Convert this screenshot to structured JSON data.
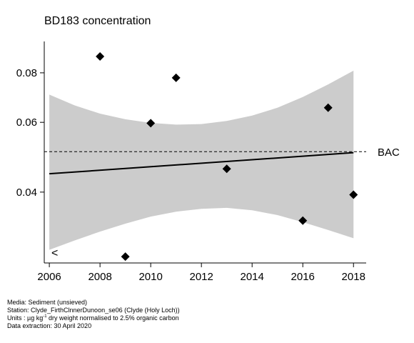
{
  "chart_data": {
    "type": "scatter",
    "title": "BD183 concentration",
    "xlabel": "",
    "ylabel": "",
    "xlim": [
      2005.8,
      2018.5
    ],
    "ylim_log": [
      0.0265,
      0.096
    ],
    "y_scale": "log",
    "x_ticks": [
      "2006",
      "2008",
      "2010",
      "2012",
      "2014",
      "2016",
      "2018"
    ],
    "y_ticks": [
      "0.04",
      "0.06",
      "0.08"
    ],
    "points": [
      {
        "x": 2008,
        "y": 0.088
      },
      {
        "x": 2009,
        "y": 0.0275
      },
      {
        "x": 2010,
        "y": 0.0597
      },
      {
        "x": 2011,
        "y": 0.0777
      },
      {
        "x": 2013,
        "y": 0.0458
      },
      {
        "x": 2016,
        "y": 0.0339
      },
      {
        "x": 2017,
        "y": 0.0653
      },
      {
        "x": 2018,
        "y": 0.0394
      }
    ],
    "trend": {
      "x": [
        2006,
        2018
      ],
      "y": [
        0.0445,
        0.0503
      ]
    },
    "band": {
      "x": [
        2006,
        2007,
        2008,
        2009,
        2010,
        2011,
        2012,
        2013,
        2014,
        2015,
        2016,
        2017,
        2018
      ],
      "upper": [
        0.0705,
        0.0662,
        0.0631,
        0.0611,
        0.0598,
        0.0592,
        0.0594,
        0.0605,
        0.0624,
        0.0653,
        0.0695,
        0.0748,
        0.081
      ],
      "lower": [
        0.0286,
        0.0302,
        0.0318,
        0.0333,
        0.0347,
        0.0357,
        0.0363,
        0.0365,
        0.036,
        0.035,
        0.0336,
        0.0321,
        0.0306
      ]
    },
    "reference_line": {
      "label": "BAC",
      "y": 0.0506
    },
    "less_than_marker": "<",
    "colors": {
      "band": "#cccccc",
      "points": "#000000",
      "trend": "#000000"
    }
  },
  "footer": {
    "media": "Media: Sediment (unsieved)",
    "station": "Station: Clyde_FirthClnnerDunoon_se06 (Clyde (Holy Loch))",
    "units_prefix": "Units : µg kg",
    "units_sup": "-1",
    "units_suffix": " dry weight normalised to 2.5% organic carbon",
    "extraction": "Data extraction: 30 April 2020"
  }
}
